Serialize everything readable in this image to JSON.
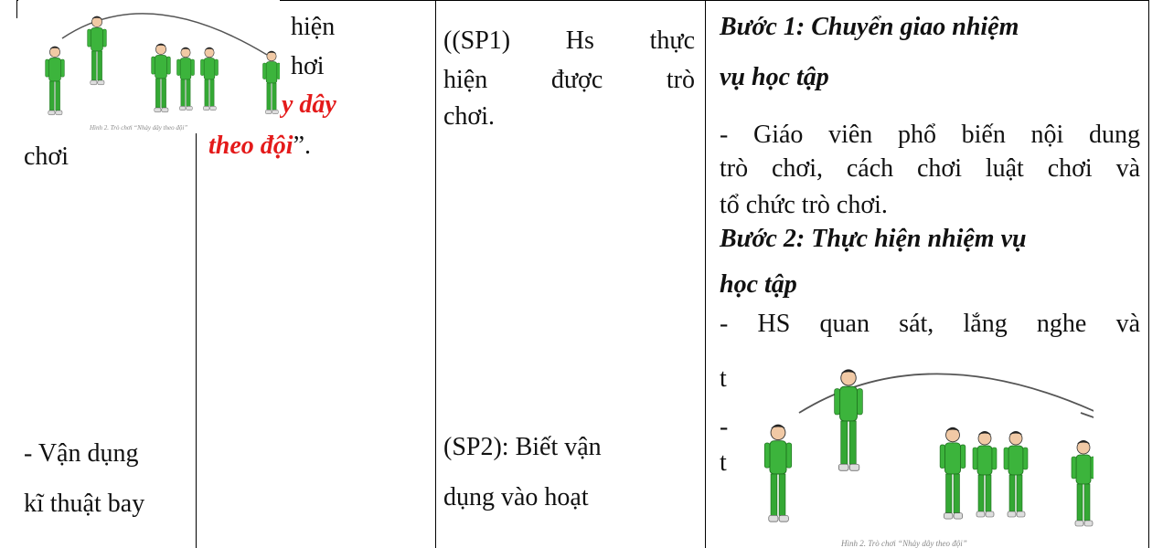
{
  "col1": [
    "chơi",
    "- Vận dụng",
    "kĩ thuật bay"
  ],
  "col2": [
    "hiện",
    "hơi",
    "y dây",
    "theo đội",
    "”."
  ],
  "col3": [
    "((SP1) Hs thực",
    "hiện được trò",
    "chơi.",
    "(SP2): Biết vận",
    "dụng vào hoạt"
  ],
  "col4": [
    "Bước 1: Chuyển giao nhiệm",
    "vụ học tập",
    "- Giáo viên phổ biến nội dung",
    "trò chơi, cách chơi luật chơi và",
    "tổ chức trò chơi.",
    "Bước 2: Thực hiện nhiệm vụ",
    "học tập",
    "- HS quan sát, lắng nghe và",
    "t",
    "-",
    "t"
  ],
  "caption1": "Hình 2. Trò chơi “Nhảy dây theo đội”",
  "caption2": "Hình 2. Trò chơi “Nhảy dây theo đội”"
}
